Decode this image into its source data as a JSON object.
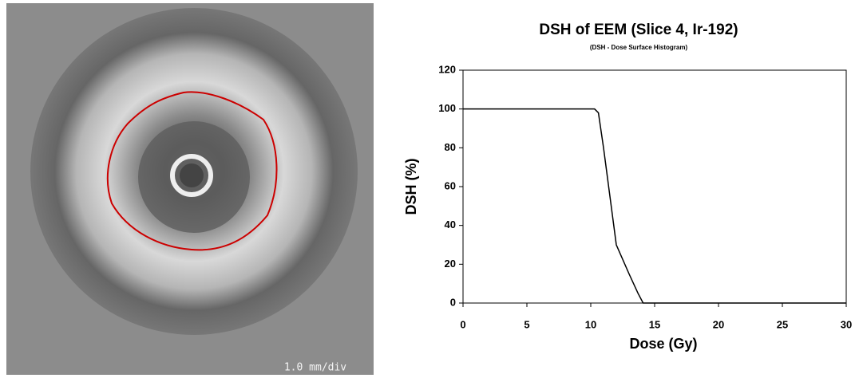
{
  "image": {
    "scale_label": "1.0 mm/div"
  },
  "chart_data": {
    "type": "line",
    "title": "DSH of EEM (Slice 4, Ir-192)",
    "subtitle": "(DSH - Dose Surface Histogram)",
    "x_label": "Dose (Gy)",
    "y_label": "DSH (%)",
    "x": [
      0,
      10.3,
      10.6,
      11,
      11.5,
      12,
      13,
      13.7,
      14.1,
      30
    ],
    "series": [
      {
        "color": "#000000",
        "values": [
          100,
          100,
          98,
          80,
          55,
          30,
          15,
          5,
          0,
          0
        ]
      }
    ],
    "xlim": [
      0,
      30
    ],
    "xticks": [
      0,
      5,
      10,
      15,
      20,
      25,
      30
    ],
    "ylim": [
      0,
      120
    ],
    "yticks": [
      0,
      20,
      40,
      60,
      80,
      100,
      120
    ],
    "grid": false
  }
}
